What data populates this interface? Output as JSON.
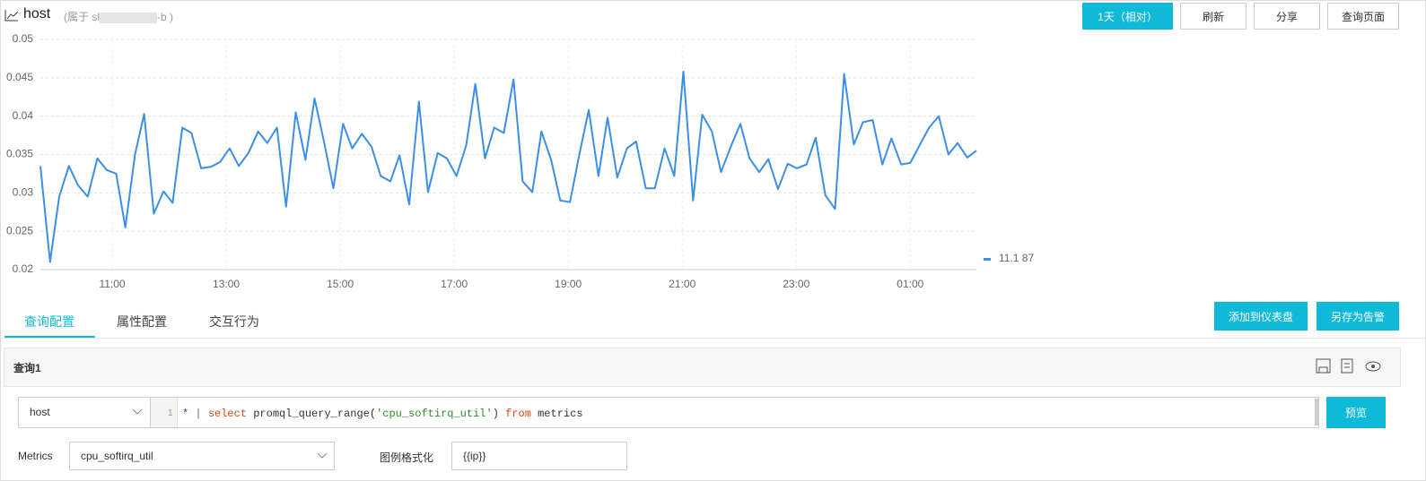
{
  "header": {
    "title": "host",
    "subtitle_start": "(属于 sl",
    "subtitle_end": "-b )"
  },
  "toolbar": {
    "time_range": "1天（相对）",
    "refresh": "刷新",
    "share": "分享",
    "query_page": "查询页面"
  },
  "chart_data": {
    "type": "line",
    "grid": true,
    "legend": "right",
    "ylim": [
      0.02,
      0.05
    ],
    "yticks": [
      0.02,
      0.025,
      0.03,
      0.035,
      0.04,
      0.045,
      0.05
    ],
    "xlim": [
      9.74,
      26.16
    ],
    "xticks": [
      {
        "value": 11,
        "label": "11:00"
      },
      {
        "value": 13,
        "label": "13:00"
      },
      {
        "value": 15,
        "label": "15:00"
      },
      {
        "value": 17,
        "label": "17:00"
      },
      {
        "value": 19,
        "label": "19:00"
      },
      {
        "value": 21,
        "label": "21:00"
      },
      {
        "value": 23,
        "label": "23:00"
      },
      {
        "value": 25,
        "label": "01:00"
      }
    ],
    "x": [
      9.74,
      9.91,
      10.07,
      10.24,
      10.4,
      10.57,
      10.74,
      10.9,
      11.07,
      11.23,
      11.4,
      11.56,
      11.73,
      11.9,
      12.06,
      12.23,
      12.39,
      12.56,
      12.73,
      12.89,
      13.06,
      13.22,
      13.39,
      13.56,
      13.72,
      13.89,
      14.05,
      14.22,
      14.39,
      14.55,
      14.72,
      14.88,
      15.05,
      15.21,
      15.38,
      15.55,
      15.71,
      15.88,
      16.04,
      16.21,
      16.38,
      16.54,
      16.71,
      16.87,
      17.04,
      17.21,
      17.37,
      17.54,
      17.7,
      17.87,
      18.04,
      18.2,
      18.37,
      18.53,
      18.7,
      18.86,
      19.03,
      19.2,
      19.36,
      19.53,
      19.69,
      19.86,
      20.03,
      20.19,
      20.36,
      20.52,
      20.69,
      20.86,
      21.02,
      21.19,
      21.35,
      21.52,
      21.68,
      21.85,
      22.02,
      22.18,
      22.35,
      22.51,
      22.68,
      22.85,
      23.01,
      23.18,
      23.34,
      23.51,
      23.68,
      23.84,
      24.01,
      24.17,
      24.34,
      24.51,
      24.67,
      24.84,
      25.0,
      25.17,
      25.33,
      25.5,
      25.67,
      25.83,
      26.0,
      26.16
    ],
    "series": [
      {
        "name": "11.1 87",
        "color": "#3b8fe8",
        "values": [
          0.0335,
          0.021,
          0.0295,
          0.0335,
          0.031,
          0.0295,
          0.0345,
          0.033,
          0.0325,
          0.0255,
          0.035,
          0.0403,
          0.0273,
          0.0302,
          0.0287,
          0.0385,
          0.0378,
          0.0332,
          0.0334,
          0.034,
          0.0358,
          0.0335,
          0.0352,
          0.038,
          0.0365,
          0.0385,
          0.0282,
          0.0405,
          0.0343,
          0.0423,
          0.0365,
          0.0306,
          0.039,
          0.0358,
          0.0377,
          0.036,
          0.0322,
          0.0315,
          0.0349,
          0.0285,
          0.0419,
          0.0301,
          0.0352,
          0.0345,
          0.0322,
          0.0362,
          0.0442,
          0.0345,
          0.0385,
          0.0378,
          0.0448,
          0.0315,
          0.0301,
          0.038,
          0.0343,
          0.029,
          0.0288,
          0.0352,
          0.0408,
          0.0322,
          0.0398,
          0.032,
          0.0358,
          0.0367,
          0.0306,
          0.0306,
          0.0358,
          0.0322,
          0.0458,
          0.029,
          0.0402,
          0.038,
          0.0327,
          0.036,
          0.039,
          0.0345,
          0.0327,
          0.0344,
          0.0305,
          0.0338,
          0.0332,
          0.0337,
          0.0372,
          0.0297,
          0.0279,
          0.0455,
          0.0363,
          0.0392,
          0.0395,
          0.0337,
          0.0371,
          0.0337,
          0.0339,
          0.0363,
          0.0385,
          0.04,
          0.035,
          0.0365,
          0.0346,
          0.0355
        ]
      }
    ]
  },
  "tabs": [
    "查询配置",
    "属性配置",
    "交互行为"
  ],
  "actions": {
    "add_dashboard": "添加到仪表盘",
    "save_alert": "另存为告警"
  },
  "query": {
    "title": "查询1",
    "logstore": "host",
    "line_number": "1",
    "code_parts": [
      {
        "text": "*",
        "color": "#1f3fa8"
      },
      {
        "text": " | ",
        "color": "#666666"
      },
      {
        "text": "select",
        "color": "#d9480f"
      },
      {
        "text": " promql_query_range(",
        "color": "#333333"
      },
      {
        "text": "'cpu_softirq_util'",
        "color": "#2e8b2e"
      },
      {
        "text": ") ",
        "color": "#333333"
      },
      {
        "text": "from",
        "color": "#d9480f"
      },
      {
        "text": " metrics",
        "color": "#333333"
      }
    ],
    "preview": "预览",
    "metrics_label": "Metrics",
    "metrics_value": "cpu_softirq_util",
    "legend_format_label": "图例格式化",
    "legend_format_value": "{{ip}}"
  }
}
